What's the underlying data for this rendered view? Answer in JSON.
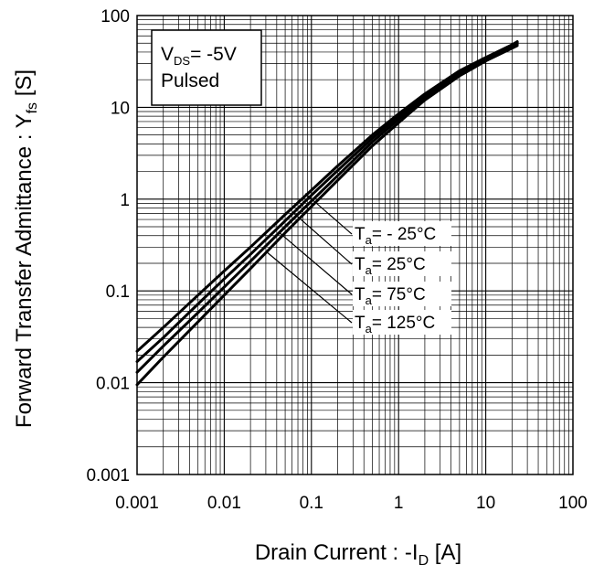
{
  "chart_data": {
    "type": "line",
    "x_scale": "log",
    "y_scale": "log",
    "xlim": [
      0.001,
      100
    ],
    "ylim": [
      0.001,
      100
    ],
    "grid": true,
    "x_ticks": [
      "0.001",
      "0.01",
      "0.1",
      "1",
      "10",
      "100"
    ],
    "y_ticks": [
      "100",
      "10",
      "1",
      "0.1",
      "0.01",
      "0.001"
    ],
    "xlabel": {
      "main": "Drain Current : -I",
      "sub": "D",
      "unit": " [A]"
    },
    "ylabel": {
      "main": "Forward Transfer Admittance : Y",
      "sub": "fs",
      "unit": " [S]"
    },
    "note": {
      "line1_main": "V",
      "line1_sub": "DS",
      "line1_rest": "= -5V",
      "line2": "Pulsed"
    },
    "series": [
      {
        "name": "- 25°C",
        "name_main": "T",
        "name_sub": "a",
        "name_rest": "= - 25°C",
        "x": [
          0.001,
          0.002,
          0.005,
          0.01,
          0.02,
          0.05,
          0.1,
          0.2,
          0.5,
          1,
          2,
          5,
          10,
          20,
          23
        ],
        "y": [
          0.022,
          0.04,
          0.09,
          0.165,
          0.3,
          0.68,
          1.25,
          2.3,
          5.0,
          8.5,
          14,
          25,
          35,
          48,
          52
        ]
      },
      {
        "name": "25°C",
        "name_main": "T",
        "name_sub": "a",
        "name_rest": "= 25°C",
        "x": [
          0.001,
          0.002,
          0.005,
          0.01,
          0.02,
          0.05,
          0.1,
          0.2,
          0.5,
          1,
          2,
          5,
          10,
          20,
          23
        ],
        "y": [
          0.017,
          0.031,
          0.072,
          0.135,
          0.25,
          0.58,
          1.1,
          2.05,
          4.6,
          8.0,
          13,
          24,
          34,
          47,
          51
        ]
      },
      {
        "name": "75°C",
        "name_main": "T",
        "name_sub": "a",
        "name_rest": "= 75°C",
        "x": [
          0.001,
          0.002,
          0.005,
          0.01,
          0.02,
          0.05,
          0.1,
          0.2,
          0.5,
          1,
          2,
          5,
          10,
          20,
          23
        ],
        "y": [
          0.013,
          0.025,
          0.058,
          0.11,
          0.21,
          0.5,
          0.95,
          1.8,
          4.2,
          7.4,
          12.5,
          23,
          33,
          45,
          49
        ]
      },
      {
        "name": "125°C",
        "name_main": "T",
        "name_sub": "a",
        "name_rest": "= 125°C",
        "x": [
          0.001,
          0.002,
          0.005,
          0.01,
          0.02,
          0.05,
          0.1,
          0.2,
          0.5,
          1,
          2,
          5,
          10,
          20,
          23
        ],
        "y": [
          0.0095,
          0.019,
          0.046,
          0.09,
          0.175,
          0.43,
          0.83,
          1.6,
          3.8,
          6.8,
          12,
          22,
          32,
          44,
          47
        ]
      }
    ]
  }
}
